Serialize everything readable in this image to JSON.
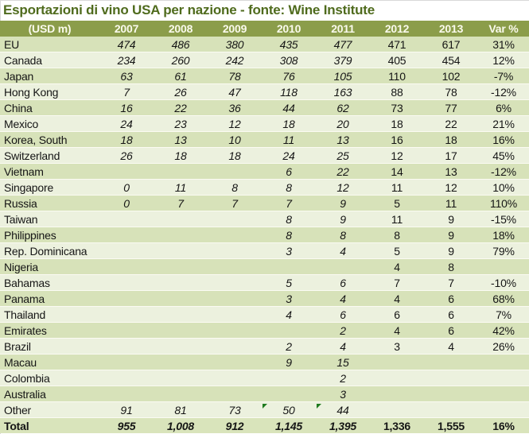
{
  "colors": {
    "title_text": "#4f6b1d",
    "header_bg": "#8b9d4a",
    "header_text": "#fafaec",
    "band_dark": "#d7e2b9",
    "band_light": "#ecf1de",
    "total_bg": "#d9e4bb",
    "flag_marker": "#1e7a1e"
  },
  "chart_data": {
    "type": "table",
    "title": "Esportazioni di vino USA per nazione - fonte: Wine Institute",
    "columns": [
      "(USD m)",
      "2007",
      "2008",
      "2009",
      "2010",
      "2011",
      "2012",
      "2013",
      "Var %"
    ],
    "layout_hints": {
      "italic_columns": [
        "2007",
        "2008",
        "2009",
        "2010",
        "2011"
      ],
      "banded_rows": true,
      "corner_flag_cells": "Other row: 2010 and 2011"
    },
    "rows": [
      {
        "name": "EU",
        "values": [
          "474",
          "486",
          "380",
          "435",
          "477",
          "471",
          "617",
          "31%"
        ]
      },
      {
        "name": "Canada",
        "values": [
          "234",
          "260",
          "242",
          "308",
          "379",
          "405",
          "454",
          "12%"
        ]
      },
      {
        "name": "Japan",
        "values": [
          "63",
          "61",
          "78",
          "76",
          "105",
          "110",
          "102",
          "-7%"
        ]
      },
      {
        "name": "Hong Kong",
        "values": [
          "7",
          "26",
          "47",
          "118",
          "163",
          "88",
          "78",
          "-12%"
        ]
      },
      {
        "name": "China",
        "values": [
          "16",
          "22",
          "36",
          "44",
          "62",
          "73",
          "77",
          "6%"
        ]
      },
      {
        "name": "Mexico",
        "values": [
          "24",
          "23",
          "12",
          "18",
          "20",
          "18",
          "22",
          "21%"
        ]
      },
      {
        "name": "Korea, South",
        "values": [
          "18",
          "13",
          "10",
          "11",
          "13",
          "16",
          "18",
          "16%"
        ]
      },
      {
        "name": "Switzerland",
        "values": [
          "26",
          "18",
          "18",
          "24",
          "25",
          "12",
          "17",
          "45%"
        ]
      },
      {
        "name": "Vietnam",
        "values": [
          "",
          "",
          "",
          "6",
          "22",
          "14",
          "13",
          "-12%"
        ]
      },
      {
        "name": "Singapore",
        "values": [
          "0",
          "11",
          "8",
          "8",
          "12",
          "11",
          "12",
          "10%"
        ]
      },
      {
        "name": "Russia",
        "values": [
          "0",
          "7",
          "7",
          "7",
          "9",
          "5",
          "11",
          "110%"
        ]
      },
      {
        "name": "Taiwan",
        "values": [
          "",
          "",
          "",
          "8",
          "9",
          "11",
          "9",
          "-15%"
        ]
      },
      {
        "name": "Philippines",
        "values": [
          "",
          "",
          "",
          "8",
          "8",
          "8",
          "9",
          "18%"
        ]
      },
      {
        "name": "Rep. Dominicana",
        "values": [
          "",
          "",
          "",
          "3",
          "4",
          "5",
          "9",
          "79%"
        ]
      },
      {
        "name": "Nigeria",
        "values": [
          "",
          "",
          "",
          "",
          "",
          "4",
          "8",
          ""
        ]
      },
      {
        "name": "Bahamas",
        "values": [
          "",
          "",
          "",
          "5",
          "6",
          "7",
          "7",
          "-10%"
        ]
      },
      {
        "name": "Panama",
        "values": [
          "",
          "",
          "",
          "3",
          "4",
          "4",
          "6",
          "68%"
        ]
      },
      {
        "name": "Thailand",
        "values": [
          "",
          "",
          "",
          "4",
          "6",
          "6",
          "6",
          "7%"
        ]
      },
      {
        "name": "Emirates",
        "values": [
          "",
          "",
          "",
          "",
          "2",
          "4",
          "6",
          "42%"
        ]
      },
      {
        "name": "Brazil",
        "values": [
          "",
          "",
          "",
          "2",
          "4",
          "3",
          "4",
          "26%"
        ]
      },
      {
        "name": "Macau",
        "values": [
          "",
          "",
          "",
          "9",
          "15",
          "",
          "",
          ""
        ]
      },
      {
        "name": "Colombia",
        "values": [
          "",
          "",
          "",
          "",
          "2",
          "",
          "",
          ""
        ]
      },
      {
        "name": "Australia",
        "values": [
          "",
          "",
          "",
          "",
          "3",
          "",
          "",
          ""
        ]
      },
      {
        "name": "Other",
        "values": [
          "91",
          "81",
          "73",
          "50",
          "44",
          "",
          "",
          ""
        ],
        "markers": [
          3,
          4
        ]
      }
    ],
    "total": {
      "name": "Total",
      "values": [
        "955",
        "1,008",
        "912",
        "1,145",
        "1,395",
        "1,336",
        "1,555",
        "16%"
      ]
    }
  }
}
